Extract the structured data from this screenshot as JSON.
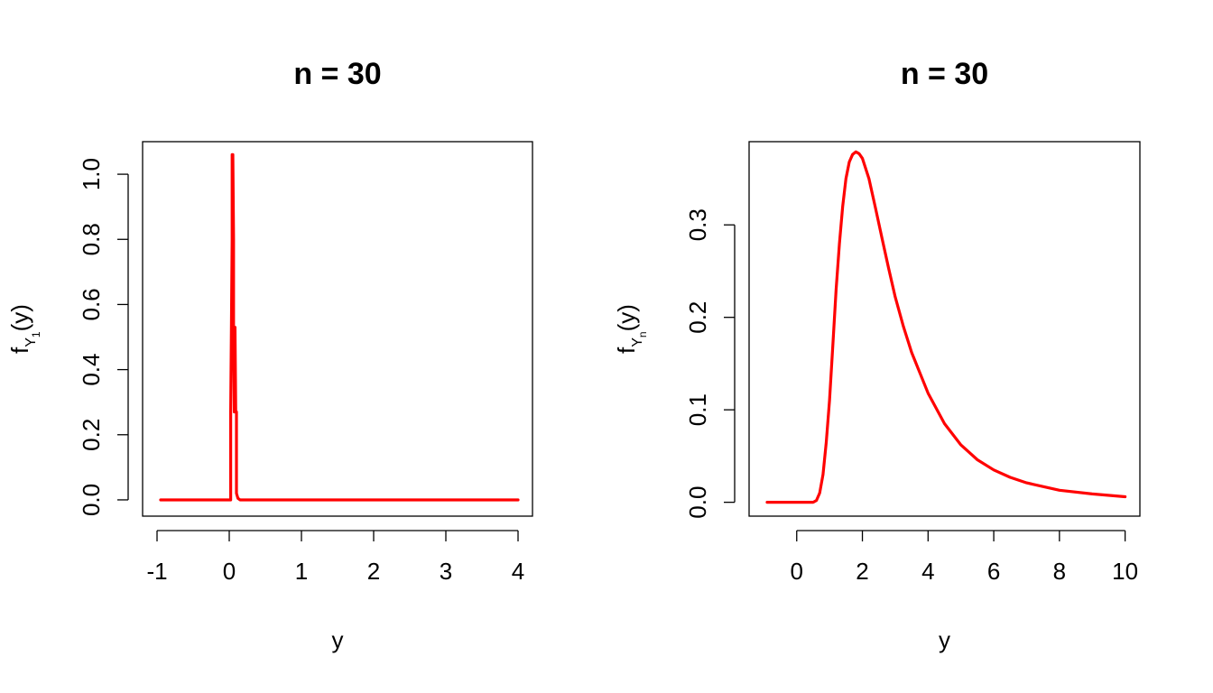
{
  "chart_data": [
    {
      "type": "line",
      "title": "n =  30",
      "xlabel": "y",
      "ylabel": {
        "base": "f",
        "sub1": "Y",
        "sub2": "1",
        "suffix": "(y)"
      },
      "xlim": [
        -1.2,
        4.2
      ],
      "ylim": [
        -0.05,
        1.1
      ],
      "xticks": [
        -1,
        0,
        1,
        2,
        3,
        4
      ],
      "xtick_labels": [
        "-1",
        "0",
        "1",
        "2",
        "3",
        "4"
      ],
      "yticks": [
        0.0,
        0.2,
        0.4,
        0.6,
        0.8,
        1.0
      ],
      "ytick_labels": [
        "0.0",
        "0.2",
        "0.4",
        "0.6",
        "0.8",
        "1.0"
      ],
      "grid": false,
      "color": "#ff0000",
      "series": [
        {
          "x": [
            -0.95,
            0.0,
            0.02,
            0.02,
            0.03,
            0.04,
            0.04,
            0.05,
            0.06,
            0.06,
            0.07,
            0.08,
            0.08,
            0.09,
            0.1,
            0.1,
            0.12,
            0.15,
            0.3,
            1.0,
            2.0,
            3.0,
            4.0
          ],
          "y": [
            0,
            0,
            0,
            0.27,
            0.53,
            0.8,
            1.06,
            1.06,
            0.8,
            0.53,
            0.27,
            0.27,
            0.53,
            0.27,
            0.27,
            0.02,
            0.005,
            0,
            0,
            0,
            0,
            0,
            0
          ]
        }
      ]
    },
    {
      "type": "line",
      "title": "n =  30",
      "xlabel": "y",
      "ylabel": {
        "base": "f",
        "sub1": "Y",
        "sub2": "n",
        "suffix": "(y)"
      },
      "xlim": [
        -1.45,
        10.45
      ],
      "ylim": [
        -0.015,
        0.39
      ],
      "xticks": [
        0,
        2,
        4,
        6,
        8,
        10
      ],
      "xtick_labels": [
        "0",
        "2",
        "4",
        "6",
        "8",
        "10"
      ],
      "yticks": [
        0.0,
        0.1,
        0.2,
        0.3
      ],
      "ytick_labels": [
        "0.0",
        "0.1",
        "0.2",
        "0.3"
      ],
      "grid": false,
      "color": "#ff0000",
      "series": [
        {
          "x": [
            -0.9,
            0.5,
            0.6,
            0.7,
            0.8,
            0.9,
            1.0,
            1.1,
            1.2,
            1.3,
            1.4,
            1.5,
            1.6,
            1.7,
            1.8,
            1.9,
            2.0,
            2.2,
            2.4,
            2.6,
            2.8,
            3.0,
            3.25,
            3.5,
            4.0,
            4.5,
            5.0,
            5.5,
            6.0,
            6.5,
            7.0,
            8.0,
            9.0,
            10.0
          ],
          "y": [
            0,
            0,
            0.002,
            0.01,
            0.03,
            0.065,
            0.11,
            0.17,
            0.23,
            0.28,
            0.32,
            0.35,
            0.368,
            0.376,
            0.379,
            0.377,
            0.372,
            0.35,
            0.318,
            0.285,
            0.253,
            0.222,
            0.19,
            0.162,
            0.118,
            0.085,
            0.062,
            0.046,
            0.035,
            0.027,
            0.021,
            0.013,
            0.009,
            0.006
          ]
        }
      ]
    }
  ]
}
